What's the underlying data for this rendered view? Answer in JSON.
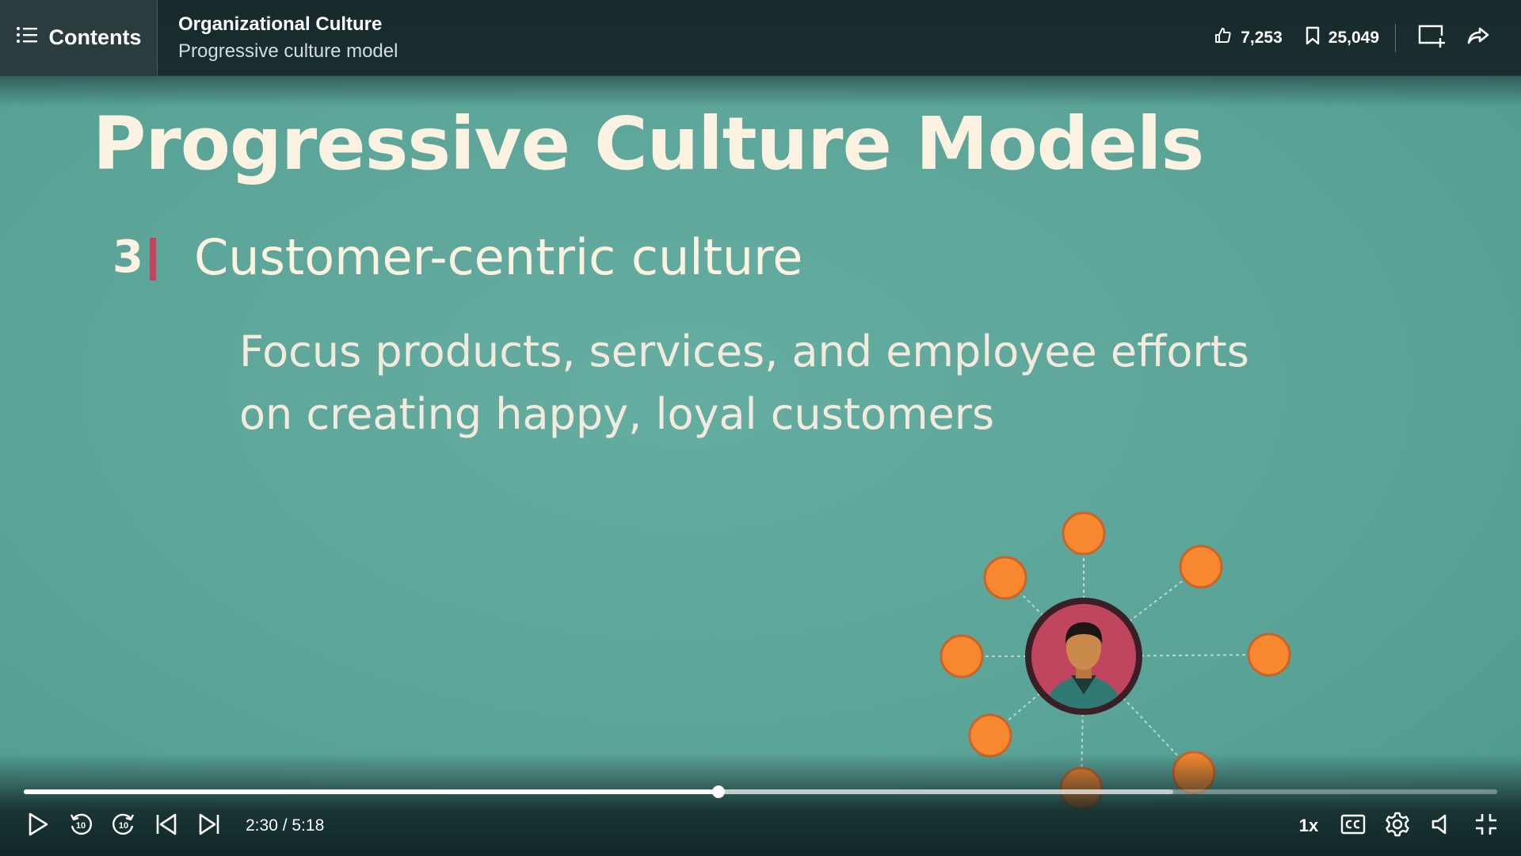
{
  "header": {
    "contents_label": "Contents",
    "course_title": "Organizational Culture",
    "video_title": "Progressive culture model",
    "likes": "7,253",
    "saves": "25,049",
    "icons": {
      "contents": "list-icon",
      "like": "thumbs-up-icon",
      "save": "bookmark-icon",
      "add_to_collection": "add-to-collection-icon",
      "share": "share-icon"
    }
  },
  "slide": {
    "title": "Progressive Culture Models",
    "point_number": "3",
    "point_heading": "Customer-centric culture",
    "point_body_lines": [
      "Focus products, services, and employee efforts",
      "on creating happy, loyal customers"
    ],
    "colors": {
      "background": "#5fa79b",
      "text": "#fbf2e2",
      "accent_bar": "#c8415d",
      "node_fill": "#f7882f",
      "hub_fill": "#c0455f"
    }
  },
  "player": {
    "time_display": "2:30 / 5:18",
    "progress_fraction": 0.4717,
    "buffered_fraction": 0.78,
    "speed_label": "1x",
    "icons": {
      "play": "play-icon",
      "rewind": "rewind-10-icon",
      "forward": "forward-10-icon",
      "previous": "skip-previous-icon",
      "next": "skip-next-icon",
      "captions": "closed-captions-icon",
      "settings": "gear-icon",
      "volume": "volume-icon",
      "exit_fullscreen": "exit-fullscreen-icon"
    }
  }
}
